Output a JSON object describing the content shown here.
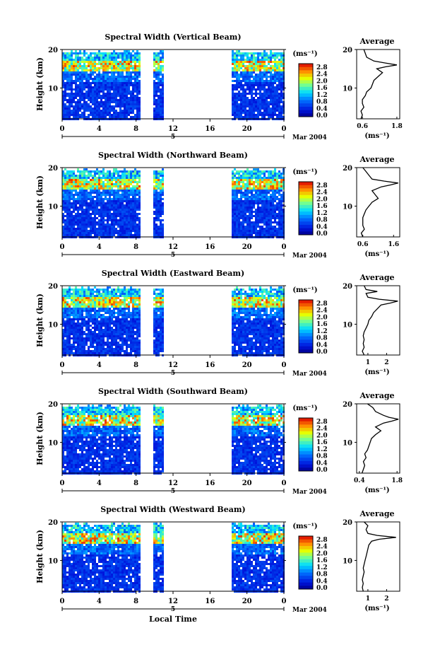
{
  "chart_data": {
    "type": "heatmap",
    "x_label": "Local Time",
    "date_label": "Mar 2004",
    "day_marker": "5",
    "colorbar_unit": "(ms⁻¹)",
    "colorbar_ticks": [
      "2.8",
      "2.4",
      "2.0",
      "1.6",
      "1.2",
      "0.8",
      "0.4",
      "0.0"
    ],
    "time_ticks": [
      "0",
      "4",
      "8",
      "12",
      "16",
      "20",
      "0"
    ],
    "x_range": [
      0,
      24
    ],
    "y_range": [
      2,
      20
    ],
    "y_ticks": [
      "20",
      "10"
    ],
    "y_label": "Height (km)",
    "average_title": "Average",
    "average_unit": "(ms⁻¹)",
    "data_gaps_hours": [
      [
        8.3,
        9.7
      ],
      [
        10.8,
        18.2
      ]
    ],
    "panels": [
      {
        "title": "Spectral Width (Vertical Beam)",
        "avg_ticks": [
          "0.6",
          "1.8"
        ],
        "avg_range": [
          0.4,
          1.9
        ],
        "profile": [
          [
            2,
            0.55
          ],
          [
            3,
            0.6
          ],
          [
            4,
            0.55
          ],
          [
            5,
            0.65
          ],
          [
            6,
            0.6
          ],
          [
            7,
            0.6
          ],
          [
            8,
            0.7
          ],
          [
            9,
            0.75
          ],
          [
            10,
            0.9
          ],
          [
            11,
            0.95
          ],
          [
            12,
            1.0
          ],
          [
            13,
            1.15
          ],
          [
            14,
            1.3
          ],
          [
            15,
            1.1
          ],
          [
            15.5,
            1.4
          ],
          [
            16,
            1.8
          ],
          [
            16.5,
            1.4
          ],
          [
            17,
            1.0
          ],
          [
            18,
            0.75
          ],
          [
            19,
            0.7
          ],
          [
            20,
            0.65
          ]
        ]
      },
      {
        "title": "Spectral Width (Northward Beam)",
        "avg_ticks": [
          "0.6",
          "1.6"
        ],
        "avg_range": [
          0.4,
          1.8
        ],
        "profile": [
          [
            2,
            0.6
          ],
          [
            3,
            0.55
          ],
          [
            4,
            0.65
          ],
          [
            5,
            0.6
          ],
          [
            6,
            0.6
          ],
          [
            7,
            0.6
          ],
          [
            8,
            0.65
          ],
          [
            9,
            0.7
          ],
          [
            10,
            0.8
          ],
          [
            11,
            0.9
          ],
          [
            12,
            1.1
          ],
          [
            13,
            1.0
          ],
          [
            14,
            0.9
          ],
          [
            15,
            1.2
          ],
          [
            15.5,
            1.5
          ],
          [
            16,
            1.75
          ],
          [
            16.5,
            1.3
          ],
          [
            17,
            0.9
          ],
          [
            18,
            0.8
          ],
          [
            19,
            0.7
          ],
          [
            20,
            0.6
          ]
        ]
      },
      {
        "title": "Spectral Width (Eastward Beam)",
        "avg_ticks": [
          "1",
          "2"
        ],
        "avg_range": [
          0.4,
          2.7
        ],
        "profile": [
          [
            2,
            0.8
          ],
          [
            3,
            0.7
          ],
          [
            4,
            0.8
          ],
          [
            5,
            0.75
          ],
          [
            6,
            0.8
          ],
          [
            7,
            0.75
          ],
          [
            8,
            0.8
          ],
          [
            9,
            0.9
          ],
          [
            10,
            1.0
          ],
          [
            11,
            1.05
          ],
          [
            12,
            1.2
          ],
          [
            13,
            1.3
          ],
          [
            14,
            1.5
          ],
          [
            15,
            1.7
          ],
          [
            15.5,
            2.2
          ],
          [
            16,
            2.6
          ],
          [
            16.5,
            1.6
          ],
          [
            17,
            1.0
          ],
          [
            18,
            0.9
          ],
          [
            18.5,
            1.5
          ],
          [
            19,
            0.9
          ],
          [
            20,
            0.8
          ]
        ]
      },
      {
        "title": "Spectral Width (Southward Beam)",
        "avg_ticks": [
          "0.4",
          "1.8"
        ],
        "avg_range": [
          0.3,
          1.9
        ],
        "profile": [
          [
            2,
            0.5
          ],
          [
            3,
            0.55
          ],
          [
            4,
            0.6
          ],
          [
            5,
            0.55
          ],
          [
            6,
            0.65
          ],
          [
            7,
            0.6
          ],
          [
            8,
            0.7
          ],
          [
            9,
            0.75
          ],
          [
            10,
            0.8
          ],
          [
            11,
            0.85
          ],
          [
            12,
            1.0
          ],
          [
            13,
            1.2
          ],
          [
            14,
            1.0
          ],
          [
            15,
            1.3
          ],
          [
            15.5,
            1.6
          ],
          [
            16,
            1.85
          ],
          [
            16.5,
            1.5
          ],
          [
            17,
            1.3
          ],
          [
            18,
            1.0
          ],
          [
            19,
            0.9
          ],
          [
            20,
            0.7
          ]
        ]
      },
      {
        "title": "Spectral Width (Westward Beam)",
        "avg_ticks": [
          "1",
          "2"
        ],
        "avg_range": [
          0.4,
          2.7
        ],
        "profile": [
          [
            2,
            0.75
          ],
          [
            3,
            0.7
          ],
          [
            4,
            0.75
          ],
          [
            5,
            0.7
          ],
          [
            6,
            0.75
          ],
          [
            7,
            0.8
          ],
          [
            8,
            0.75
          ],
          [
            9,
            0.8
          ],
          [
            10,
            0.85
          ],
          [
            11,
            0.9
          ],
          [
            12,
            0.95
          ],
          [
            13,
            1.0
          ],
          [
            14,
            1.05
          ],
          [
            15,
            1.2
          ],
          [
            15.5,
            1.6
          ],
          [
            16,
            2.5
          ],
          [
            16.5,
            1.5
          ],
          [
            17,
            1.0
          ],
          [
            18,
            0.9
          ],
          [
            19,
            1.0
          ],
          [
            20,
            0.8
          ]
        ]
      }
    ]
  }
}
